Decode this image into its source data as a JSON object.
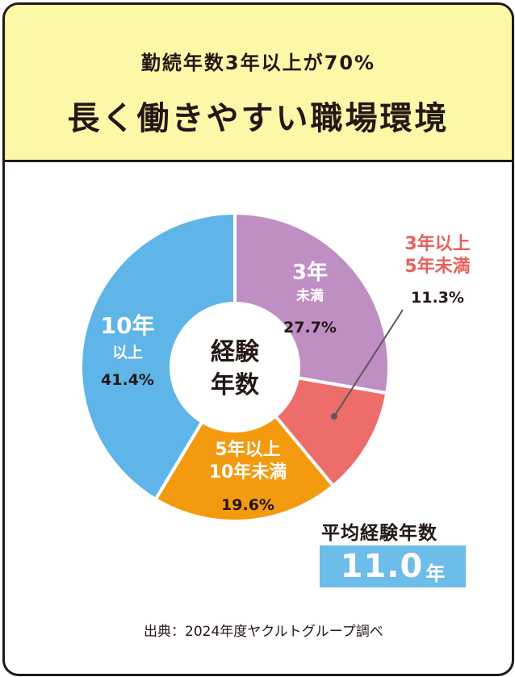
{
  "header": {
    "subtitle": "勤続年数3年以上が70%",
    "title": "長く働きやすい職場環境"
  },
  "center_label": [
    "経験",
    "年数"
  ],
  "chart_data": {
    "type": "pie",
    "donut": true,
    "slices": [
      {
        "label_lines": [
          "3年",
          "未満"
        ],
        "value": 27.7,
        "value_label": "27.7%",
        "color": "#bf8fc4",
        "label_color": "#ffffff"
      },
      {
        "label_lines": [
          "3年以上",
          "5年未満"
        ],
        "value": 11.3,
        "value_label": "11.3%",
        "color": "#ec6d6a",
        "label_color": "#e8605c"
      },
      {
        "label_lines": [
          "5年以上",
          "10年未満"
        ],
        "value": 19.6,
        "value_label": "19.6%",
        "color": "#f39a0e",
        "label_color": "#ffffff"
      },
      {
        "label_lines": [
          "10年",
          "以上"
        ],
        "value": 41.4,
        "value_label": "41.4%",
        "color": "#5fb5e8",
        "label_color": "#ffffff"
      }
    ]
  },
  "average": {
    "label": "平均経験年数",
    "value": "11.0",
    "unit": "年"
  },
  "source": "出典：2024年度ヤクルトグループ調べ"
}
